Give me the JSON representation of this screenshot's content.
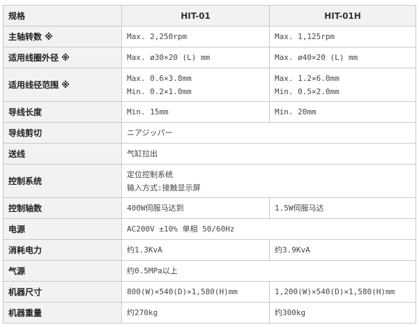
{
  "header": {
    "label": "规格",
    "col1": "HIT-01",
    "col2": "HIT-01H"
  },
  "rows": [
    {
      "label": "主轴转数 ※",
      "a": [
        "Max. 2,250rpm"
      ],
      "b": [
        "Max. 1,125rpm"
      ]
    },
    {
      "label": "适用线圈外径 ※",
      "a": [
        "Max. ø30×20 (L) mm"
      ],
      "b": [
        "Max. ø40×20 (L) mm"
      ]
    },
    {
      "label": "适用线径范围 ※",
      "a": [
        "Max. 0.6×3.8mm",
        "Min. 0.2×1.0mm"
      ],
      "b": [
        "Max. 1.2×6.0mm",
        "Min. 0.5×2.0mm"
      ]
    },
    {
      "label": "导线长度",
      "a": [
        "Min. 15mm"
      ],
      "b": [
        "Min. 20mm"
      ]
    },
    {
      "label": "导线剪切",
      "a": [
        "ニアジッパー"
      ]
    },
    {
      "label": "送线",
      "a": [
        "气缸拉出"
      ]
    },
    {
      "label": "控制系统",
      "a": [
        "定位控制系统",
        "输入方式:接触显示屏"
      ]
    },
    {
      "label": "控制轴数",
      "a": [
        "400W伺服马达到"
      ],
      "b": [
        "1.5W伺服马达"
      ]
    },
    {
      "label": "电源",
      "a": [
        "AC200V ±10%  单相 50/60Hz"
      ]
    },
    {
      "label": "消耗电力",
      "a": [
        "约1.3KvA"
      ],
      "b": [
        "约3.9KvA"
      ]
    },
    {
      "label": "气源",
      "a": [
        "约0.5MPa以上"
      ]
    },
    {
      "label": "机器尺寸",
      "a": [
        "800(W)×540(D)×1,580(H)mm"
      ],
      "b": [
        "1,200(W)×540(D)×1,580(H)mm"
      ]
    },
    {
      "label": "机器重量",
      "a": [
        "约270kg"
      ],
      "b": [
        "约300kg"
      ]
    }
  ]
}
